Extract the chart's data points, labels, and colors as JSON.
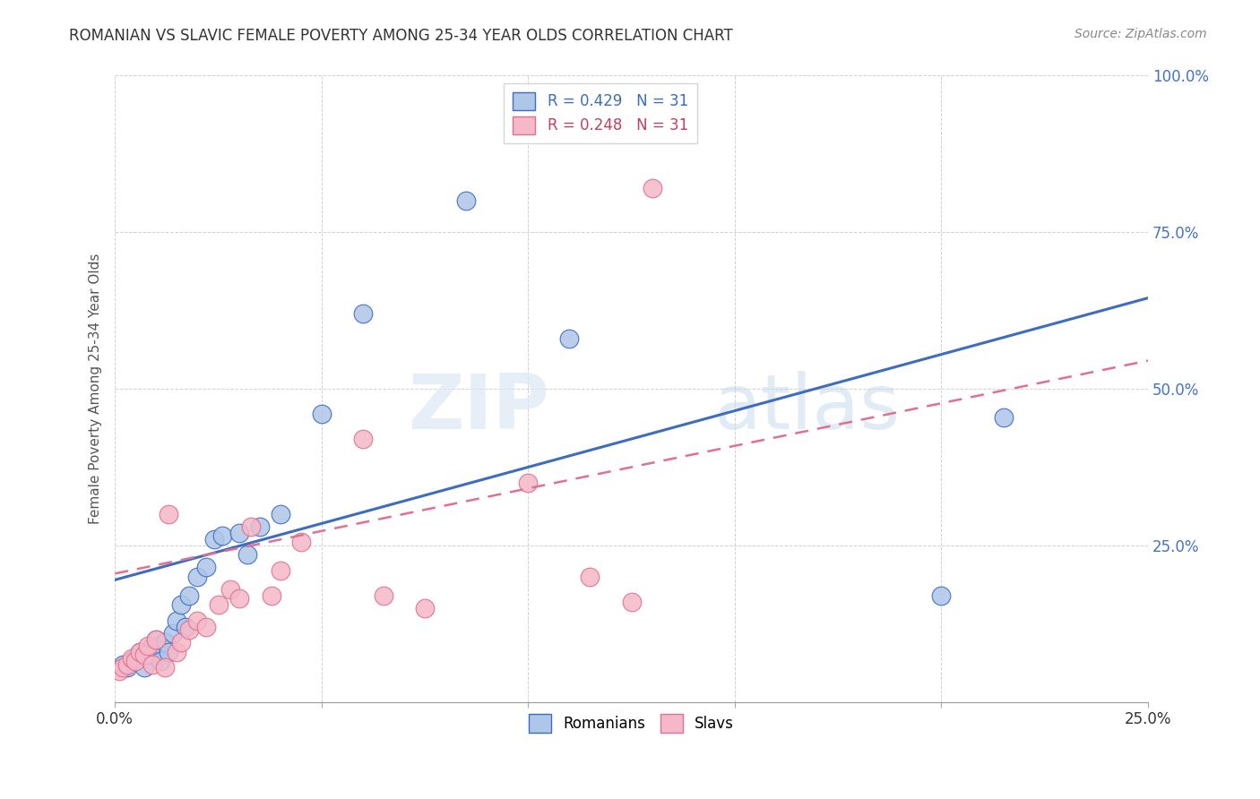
{
  "title": "ROMANIAN VS SLAVIC FEMALE POVERTY AMONG 25-34 YEAR OLDS CORRELATION CHART",
  "source": "Source: ZipAtlas.com",
  "ylabel": "Female Poverty Among 25-34 Year Olds",
  "xlim": [
    0,
    0.25
  ],
  "ylim": [
    0,
    1.0
  ],
  "xticks": [
    0.0,
    0.05,
    0.1,
    0.15,
    0.2,
    0.25
  ],
  "xtick_labels": [
    "0.0%",
    "",
    "",
    "",
    "",
    "25.0%"
  ],
  "yticks": [
    0.0,
    0.25,
    0.5,
    0.75,
    1.0
  ],
  "ytick_labels": [
    "",
    "25.0%",
    "50.0%",
    "75.0%",
    "100.0%"
  ],
  "romanian_R": 0.429,
  "slavic_R": 0.248,
  "N": 31,
  "romanian_color": "#aec6e8",
  "slavic_color": "#f5b8c8",
  "line_romanian_color": "#3d6cc0",
  "line_slavic_color": "#e07090",
  "watermark_zip": "ZIP",
  "watermark_atlas": "atlas",
  "romanian_x": [
    0.002,
    0.003,
    0.004,
    0.005,
    0.006,
    0.007,
    0.008,
    0.009,
    0.01,
    0.011,
    0.012,
    0.013,
    0.014,
    0.015,
    0.016,
    0.017,
    0.018,
    0.02,
    0.022,
    0.024,
    0.026,
    0.03,
    0.032,
    0.035,
    0.04,
    0.05,
    0.06,
    0.085,
    0.11,
    0.2,
    0.215
  ],
  "romanian_y": [
    0.06,
    0.055,
    0.065,
    0.07,
    0.08,
    0.055,
    0.075,
    0.09,
    0.1,
    0.065,
    0.095,
    0.08,
    0.11,
    0.13,
    0.155,
    0.12,
    0.17,
    0.2,
    0.215,
    0.26,
    0.265,
    0.27,
    0.235,
    0.28,
    0.3,
    0.46,
    0.62,
    0.8,
    0.58,
    0.17,
    0.455
  ],
  "slavic_x": [
    0.001,
    0.002,
    0.003,
    0.004,
    0.005,
    0.006,
    0.007,
    0.008,
    0.009,
    0.01,
    0.012,
    0.013,
    0.015,
    0.016,
    0.018,
    0.02,
    0.022,
    0.025,
    0.028,
    0.03,
    0.033,
    0.038,
    0.04,
    0.045,
    0.06,
    0.065,
    0.075,
    0.1,
    0.115,
    0.125,
    0.13
  ],
  "slavic_y": [
    0.05,
    0.055,
    0.06,
    0.07,
    0.065,
    0.08,
    0.075,
    0.09,
    0.06,
    0.1,
    0.055,
    0.3,
    0.08,
    0.095,
    0.115,
    0.13,
    0.12,
    0.155,
    0.18,
    0.165,
    0.28,
    0.17,
    0.21,
    0.255,
    0.42,
    0.17,
    0.15,
    0.35,
    0.2,
    0.16,
    0.82
  ],
  "line_rom_x0": 0.0,
  "line_rom_y0": 0.195,
  "line_rom_x1": 0.25,
  "line_rom_y1": 0.645,
  "line_slav_x0": 0.0,
  "line_slav_y0": 0.205,
  "line_slav_x1": 0.25,
  "line_slav_y1": 0.545
}
